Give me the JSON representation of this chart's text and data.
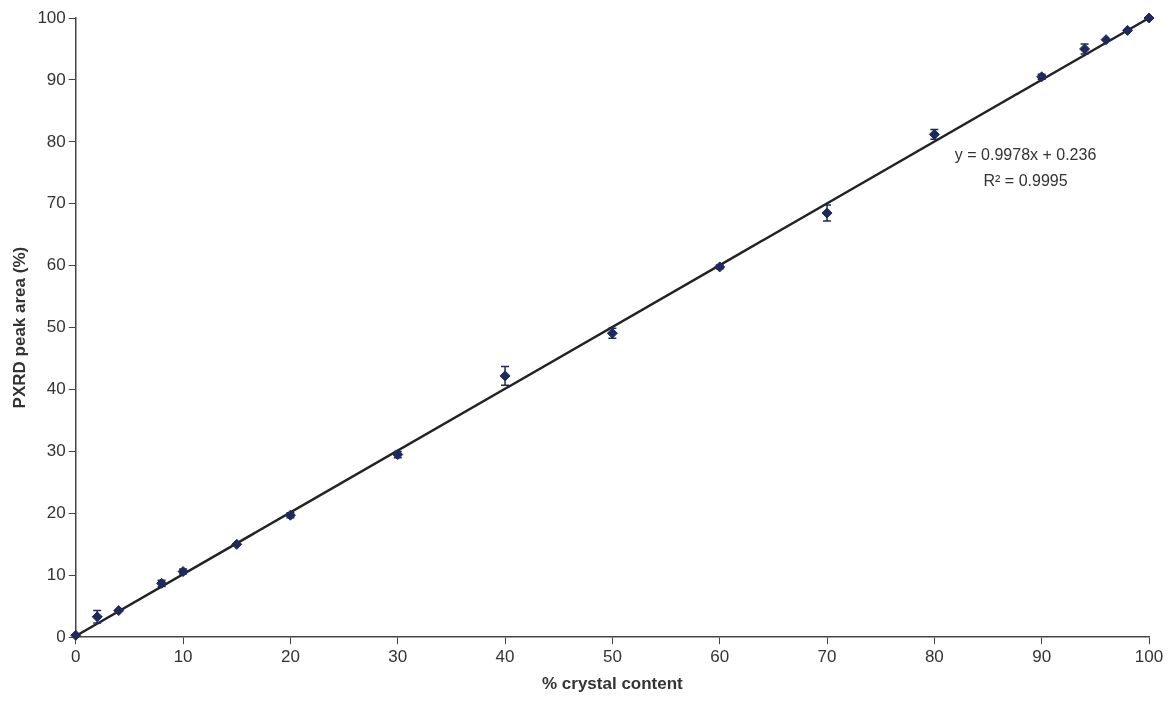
{
  "chart_data": {
    "type": "scatter",
    "xlabel": "% crystal content",
    "ylabel": "PXRD peak area (%)",
    "xlim": [
      0,
      100
    ],
    "xticks": [
      0,
      10,
      20,
      30,
      40,
      50,
      60,
      70,
      80,
      90,
      100
    ],
    "ylim": [
      0,
      100
    ],
    "yticks": [
      0,
      10,
      20,
      30,
      40,
      50,
      60,
      70,
      80,
      90,
      100
    ],
    "grid": false,
    "legend": false,
    "marker": "diamond",
    "series": [
      {
        "color": "#1f2a5c",
        "x": [
          0,
          2,
          4,
          8,
          10,
          15,
          20,
          30,
          40,
          50,
          60,
          70,
          80,
          90,
          94,
          96,
          98,
          100
        ],
        "values": [
          0.3,
          3.3,
          4.3,
          8.7,
          10.6,
          15,
          19.7,
          29.5,
          42.2,
          49.1,
          59.8,
          68.5,
          81.2,
          90.5,
          95,
          96.5,
          98,
          100
        ],
        "errors": [
          null,
          1,
          null,
          0.5,
          0.4,
          null,
          0.4,
          0.5,
          1.5,
          0.8,
          0.3,
          1.3,
          0.8,
          0.4,
          0.8,
          null,
          null,
          null
        ]
      },
      {
        "type": "line",
        "color": "#222222",
        "x": [
          0,
          100
        ],
        "values": [
          0.2,
          100
        ],
        "marker": "none"
      }
    ],
    "annotations": [
      "y = 0.9978x + 0.236",
      "R² = 0.9995"
    ]
  }
}
